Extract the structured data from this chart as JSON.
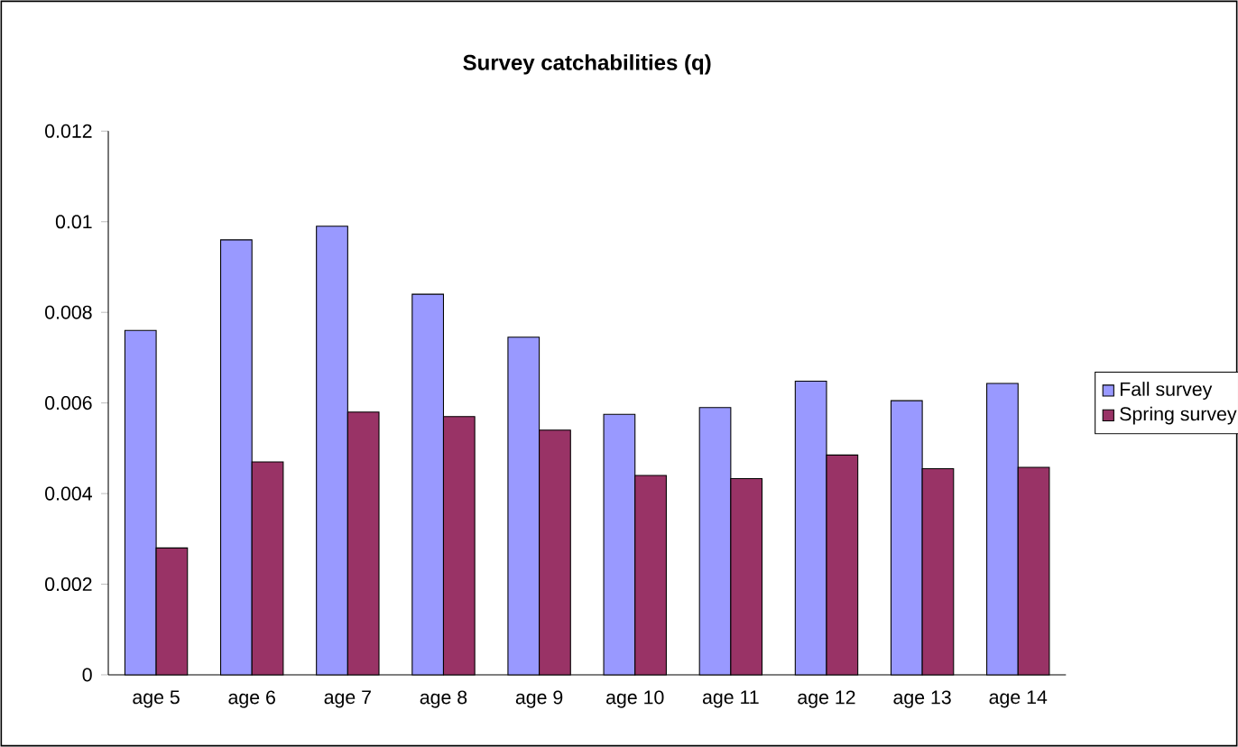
{
  "chart_data": {
    "type": "bar",
    "title": "Survey catchabilities (q)",
    "categories": [
      "age 5",
      "age 6",
      "age 7",
      "age 8",
      "age 9",
      "age 10",
      "age 11",
      "age 12",
      "age 13",
      "age 14"
    ],
    "series": [
      {
        "name": "Fall survey",
        "color": "#9999ff",
        "values": [
          0.0076,
          0.0096,
          0.0099,
          0.0084,
          0.00745,
          0.00575,
          0.0059,
          0.00648,
          0.00605,
          0.00643
        ]
      },
      {
        "name": "Spring survey",
        "color": "#993366",
        "values": [
          0.0028,
          0.0047,
          0.0058,
          0.0057,
          0.0054,
          0.0044,
          0.00433,
          0.00485,
          0.00455,
          0.00458
        ]
      }
    ],
    "ylim": [
      0,
      0.012
    ],
    "yticks": [
      0,
      0.002,
      0.004,
      0.006,
      0.008,
      0.01,
      0.012
    ],
    "legend": "right",
    "grid": false
  }
}
